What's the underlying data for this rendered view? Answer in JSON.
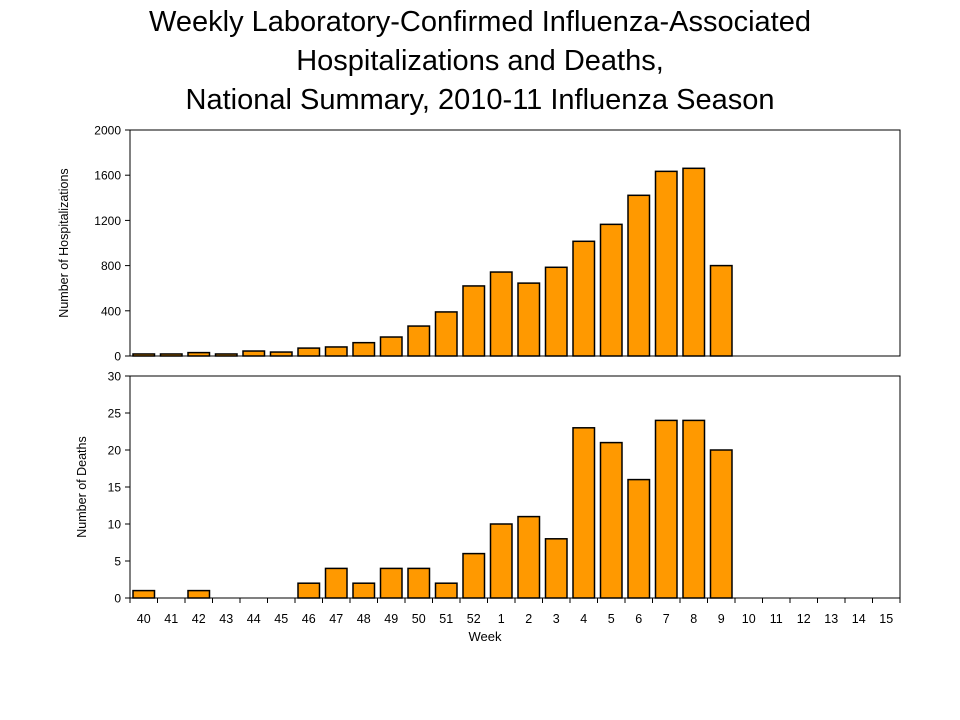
{
  "chart_data": [
    {
      "type": "bar",
      "title": [
        "Weekly Laboratory-Confirmed Influenza-Associated",
        "Hospitalizations and Deaths,",
        "National Summary, 2010-11 Influenza Season"
      ],
      "ylabel": "Number of Hospitalizations",
      "xlabel": "",
      "ylim": [
        0,
        2000
      ],
      "yticks": [
        0,
        400,
        800,
        1200,
        1600,
        2000
      ],
      "categories": [
        "40",
        "41",
        "42",
        "43",
        "44",
        "45",
        "46",
        "47",
        "48",
        "49",
        "50",
        "51",
        "52",
        "1",
        "2",
        "3",
        "4",
        "5",
        "6",
        "7",
        "8",
        "9",
        "10",
        "11",
        "12",
        "13",
        "14",
        "15"
      ],
      "values": [
        18,
        18,
        30,
        18,
        44,
        35,
        70,
        80,
        118,
        168,
        265,
        390,
        620,
        743,
        645,
        785,
        1015,
        1165,
        1422,
        1634,
        1661,
        800,
        null,
        null,
        null,
        null,
        null,
        null
      ],
      "color": "#FF9900",
      "grid": false
    },
    {
      "type": "bar",
      "ylabel": "Number of Deaths",
      "xlabel": "Week",
      "ylim": [
        0,
        30
      ],
      "yticks": [
        0,
        5,
        10,
        15,
        20,
        25,
        30
      ],
      "categories": [
        "40",
        "41",
        "42",
        "43",
        "44",
        "45",
        "46",
        "47",
        "48",
        "49",
        "50",
        "51",
        "52",
        "1",
        "2",
        "3",
        "4",
        "5",
        "6",
        "7",
        "8",
        "9",
        "10",
        "11",
        "12",
        "13",
        "14",
        "15"
      ],
      "values": [
        1,
        0,
        1,
        0,
        0,
        0,
        2,
        4,
        2,
        4,
        4,
        2,
        6,
        10,
        11,
        8,
        23,
        21,
        16,
        24,
        24,
        20,
        null,
        null,
        null,
        null,
        null,
        null
      ],
      "color": "#FF9900",
      "grid": false
    }
  ]
}
